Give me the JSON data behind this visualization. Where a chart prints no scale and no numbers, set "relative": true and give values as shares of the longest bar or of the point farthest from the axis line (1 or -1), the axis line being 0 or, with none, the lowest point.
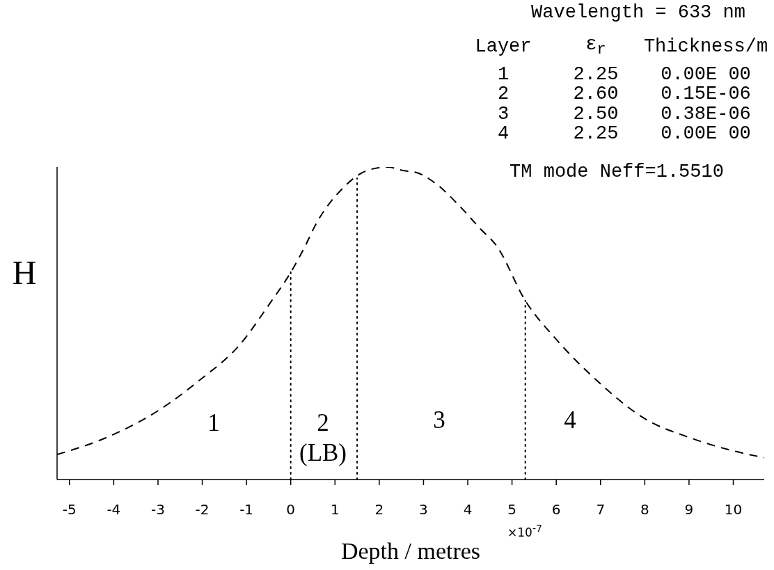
{
  "chart_data": {
    "type": "line",
    "xlabel": "Depth / metres",
    "ylabel": "H",
    "relative": true,
    "line_style": "dashed",
    "color": "#000000",
    "xlim": [
      -5.28,
      10.7
    ],
    "xticks": [
      -5,
      -4,
      -3,
      -2,
      -1,
      0,
      1,
      2,
      3,
      4,
      5,
      6,
      7,
      8,
      9,
      10
    ],
    "x": [
      -5.28,
      -4.07,
      -3,
      -2.04,
      -1.16,
      -0.49,
      0.03,
      0.3,
      0.58,
      1.16,
      1.75,
      2.2,
      2.5,
      2.89,
      3.25,
      3.85,
      4.3,
      4.64,
      5.31,
      5.99,
      6.97,
      7.94,
      9.1,
      10.05,
      10.7
    ],
    "values": [
      0.08,
      0.14,
      0.22,
      0.32,
      0.43,
      0.56,
      0.67,
      0.74,
      0.82,
      0.93,
      0.99,
      1,
      0.99,
      0.98,
      0.95,
      0.87,
      0.8,
      0.75,
      0.57,
      0.45,
      0.31,
      0.2,
      0.13,
      0.09,
      0.07
    ],
    "ref_lines": [
      {
        "axis": "x",
        "value": 0,
        "line_style": "dotted"
      },
      {
        "axis": "x",
        "value": 1.5,
        "line_style": "dotted"
      },
      {
        "axis": "x",
        "value": 5.3,
        "line_style": "dotted"
      }
    ],
    "annotations": [
      "Wavelength = 633 nm",
      "Layer",
      "ε$_{r}$",
      "Thickness/m",
      "1",
      "2.25",
      "0.00E 00",
      "2",
      "2.60",
      "0.15E-06",
      "3",
      "2.50",
      "0.38E-06",
      "4",
      "2.25",
      "0.00E 00",
      "TM mode  Neff=1.5510",
      "×10$^{-7}$",
      "1",
      "2",
      "(LB)",
      "3",
      "4"
    ]
  }
}
